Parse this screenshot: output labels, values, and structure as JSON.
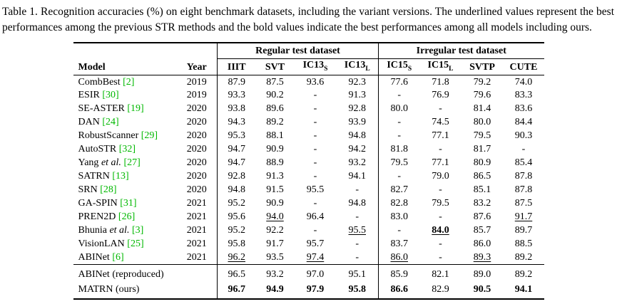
{
  "caption": "Table 1. Recognition accuracies (%) on eight benchmark datasets, including the variant versions. The underlined values represent the best performances among the previous STR methods and the bold values indicate the best performances among all models including ours.",
  "colors": {
    "citation": "#00b800"
  },
  "table": {
    "group_headers": [
      {
        "label": "Regular test dataset"
      },
      {
        "label": "Irregular test dataset"
      }
    ],
    "columns": [
      {
        "label": "Model"
      },
      {
        "label": "Year"
      },
      {
        "label": "IIIT"
      },
      {
        "label": "SVT"
      },
      {
        "label": "IC13",
        "sub": "S"
      },
      {
        "label": "IC13",
        "sub": "L"
      },
      {
        "label": "IC15",
        "sub": "S"
      },
      {
        "label": "IC15",
        "sub": "L"
      },
      {
        "label": "SVTP"
      },
      {
        "label": "CUTE"
      }
    ],
    "rows": [
      {
        "name": "CombBest",
        "cite": "[2]",
        "year": "2019",
        "values": [
          "87.9",
          "87.5",
          "93.6",
          "92.3",
          "77.6",
          "71.8",
          "79.2",
          "74.0"
        ]
      },
      {
        "name": "ESIR",
        "cite": "[30]",
        "year": "2019",
        "values": [
          "93.3",
          "90.2",
          "-",
          "91.3",
          "-",
          "76.9",
          "79.6",
          "83.3"
        ]
      },
      {
        "name": "SE-ASTER",
        "cite": "[19]",
        "year": "2020",
        "values": [
          "93.8",
          "89.6",
          "-",
          "92.8",
          "80.0",
          "-",
          "81.4",
          "83.6"
        ]
      },
      {
        "name": "DAN",
        "cite": "[24]",
        "year": "2020",
        "values": [
          "94.3",
          "89.2",
          "-",
          "93.9",
          "-",
          "74.5",
          "80.0",
          "84.4"
        ]
      },
      {
        "name": "RobustScanner",
        "cite": "[29]",
        "year": "2020",
        "values": [
          "95.3",
          "88.1",
          "-",
          "94.8",
          "-",
          "77.1",
          "79.5",
          "90.3"
        ]
      },
      {
        "name": "AutoSTR",
        "cite": "[32]",
        "year": "2020",
        "values": [
          "94.7",
          "90.9",
          "-",
          "94.2",
          "81.8",
          "-",
          "81.7",
          "-"
        ]
      },
      {
        "name": "Yang",
        "etal": "et al.",
        "cite": "[27]",
        "year": "2020",
        "values": [
          "94.7",
          "88.9",
          "-",
          "93.2",
          "79.5",
          "77.1",
          "80.9",
          "85.4"
        ]
      },
      {
        "name": "SATRN",
        "cite": "[13]",
        "year": "2020",
        "values": [
          "92.8",
          "91.3",
          "-",
          "94.1",
          "-",
          "79.0",
          "86.5",
          "87.8"
        ]
      },
      {
        "name": "SRN",
        "cite": "[28]",
        "year": "2020",
        "values": [
          "94.8",
          "91.5",
          "95.5",
          "-",
          "82.7",
          "-",
          "85.1",
          "87.8"
        ]
      },
      {
        "name": "GA-SPIN",
        "cite": "[31]",
        "year": "2021",
        "values": [
          "95.2",
          "90.9",
          "-",
          "94.8",
          "82.8",
          "79.5",
          "83.2",
          "87.5"
        ]
      },
      {
        "name": "PREN2D",
        "cite": "[26]",
        "year": "2021",
        "values": [
          "95.6",
          "94.0",
          "96.4",
          "-",
          "83.0",
          "-",
          "87.6",
          "91.7"
        ],
        "underline": [
          1,
          7
        ]
      },
      {
        "name": "Bhunia",
        "etal": "et al.",
        "cite": "[3]",
        "year": "2021",
        "values": [
          "95.2",
          "92.2",
          "-",
          "95.5",
          "-",
          "84.0",
          "85.7",
          "89.7"
        ],
        "underline": [
          3,
          5
        ],
        "bold": [
          5
        ]
      },
      {
        "name": "VisionLAN",
        "cite": "[25]",
        "year": "2021",
        "values": [
          "95.8",
          "91.7",
          "95.7",
          "-",
          "83.7",
          "-",
          "86.0",
          "88.5"
        ]
      },
      {
        "name": "ABINet",
        "cite": "[6]",
        "year": "2021",
        "values": [
          "96.2",
          "93.5",
          "97.4",
          "-",
          "86.0",
          "-",
          "89.3",
          "89.2"
        ],
        "underline": [
          0,
          2,
          4,
          6
        ]
      }
    ],
    "ours_rows": [
      {
        "name": "ABINet (reproduced)",
        "year": "",
        "values": [
          "96.5",
          "93.2",
          "97.0",
          "95.1",
          "85.9",
          "82.1",
          "89.0",
          "89.2"
        ]
      },
      {
        "name": "MATRN (ours)",
        "year": "",
        "values": [
          "96.7",
          "94.9",
          "97.9",
          "95.8",
          "86.6",
          "82.9",
          "90.5",
          "94.1"
        ],
        "bold": [
          0,
          1,
          2,
          3,
          4,
          6,
          7
        ]
      }
    ]
  }
}
